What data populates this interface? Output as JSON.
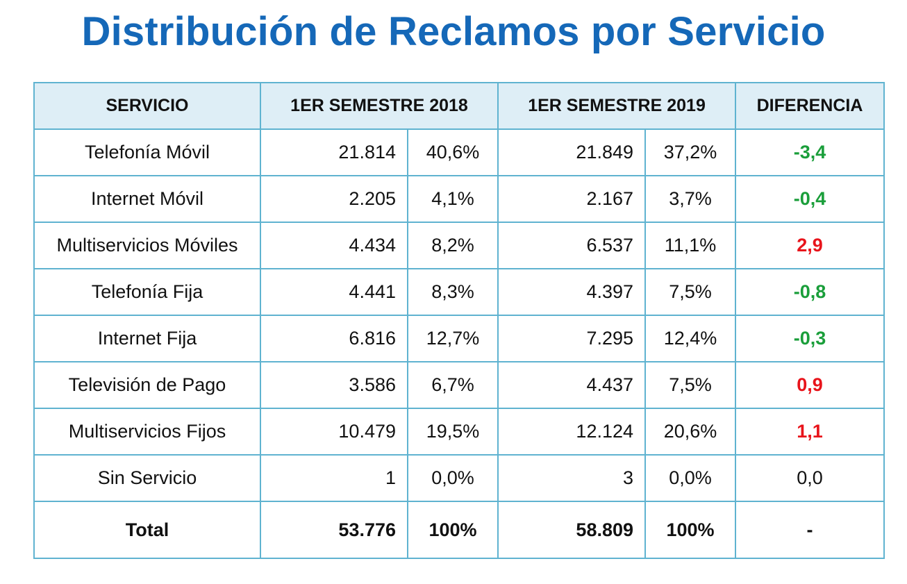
{
  "title": "Distribución de Reclamos por Servicio",
  "colors": {
    "title": "#1568b8",
    "header_bg": "#deeef6",
    "border": "#5fb3d0",
    "negative": "#1a9e3a",
    "positive": "#e8141b"
  },
  "chart_data": {
    "type": "table",
    "title": "Distribución de Reclamos por Servicio",
    "columns": [
      "SERVICIO",
      "1ER SEMESTRE 2018",
      "1ER SEMESTRE 2019",
      "DIFERENCIA"
    ],
    "rows": [
      {
        "servicio": "Telefonía Móvil",
        "v2018": "21.814",
        "p2018": "40,6%",
        "v2019": "21.849",
        "p2019": "37,2%",
        "diff": "-3,4",
        "sign": "neg"
      },
      {
        "servicio": "Internet Móvil",
        "v2018": "2.205",
        "p2018": "4,1%",
        "v2019": "2.167",
        "p2019": "3,7%",
        "diff": "-0,4",
        "sign": "neg"
      },
      {
        "servicio": "Multiservicios Móviles",
        "v2018": "4.434",
        "p2018": "8,2%",
        "v2019": "6.537",
        "p2019": "11,1%",
        "diff": "2,9",
        "sign": "pos"
      },
      {
        "servicio": "Telefonía Fija",
        "v2018": "4.441",
        "p2018": "8,3%",
        "v2019": "4.397",
        "p2019": "7,5%",
        "diff": "-0,8",
        "sign": "neg"
      },
      {
        "servicio": "Internet Fija",
        "v2018": "6.816",
        "p2018": "12,7%",
        "v2019": "7.295",
        "p2019": "12,4%",
        "diff": "-0,3",
        "sign": "neg"
      },
      {
        "servicio": "Televisión de Pago",
        "v2018": "3.586",
        "p2018": "6,7%",
        "v2019": "4.437",
        "p2019": "7,5%",
        "diff": "0,9",
        "sign": "pos"
      },
      {
        "servicio": "Multiservicios Fijos",
        "v2018": "10.479",
        "p2018": "19,5%",
        "v2019": "12.124",
        "p2019": "20,6%",
        "diff": "1,1",
        "sign": "pos"
      },
      {
        "servicio": "Sin Servicio",
        "v2018": "1",
        "p2018": "0,0%",
        "v2019": "3",
        "p2019": "0,0%",
        "diff": "0,0",
        "sign": "neutral"
      }
    ],
    "total": {
      "servicio": "Total",
      "v2018": "53.776",
      "p2018": "100%",
      "v2019": "58.809",
      "p2019": "100%",
      "diff": "-"
    }
  }
}
